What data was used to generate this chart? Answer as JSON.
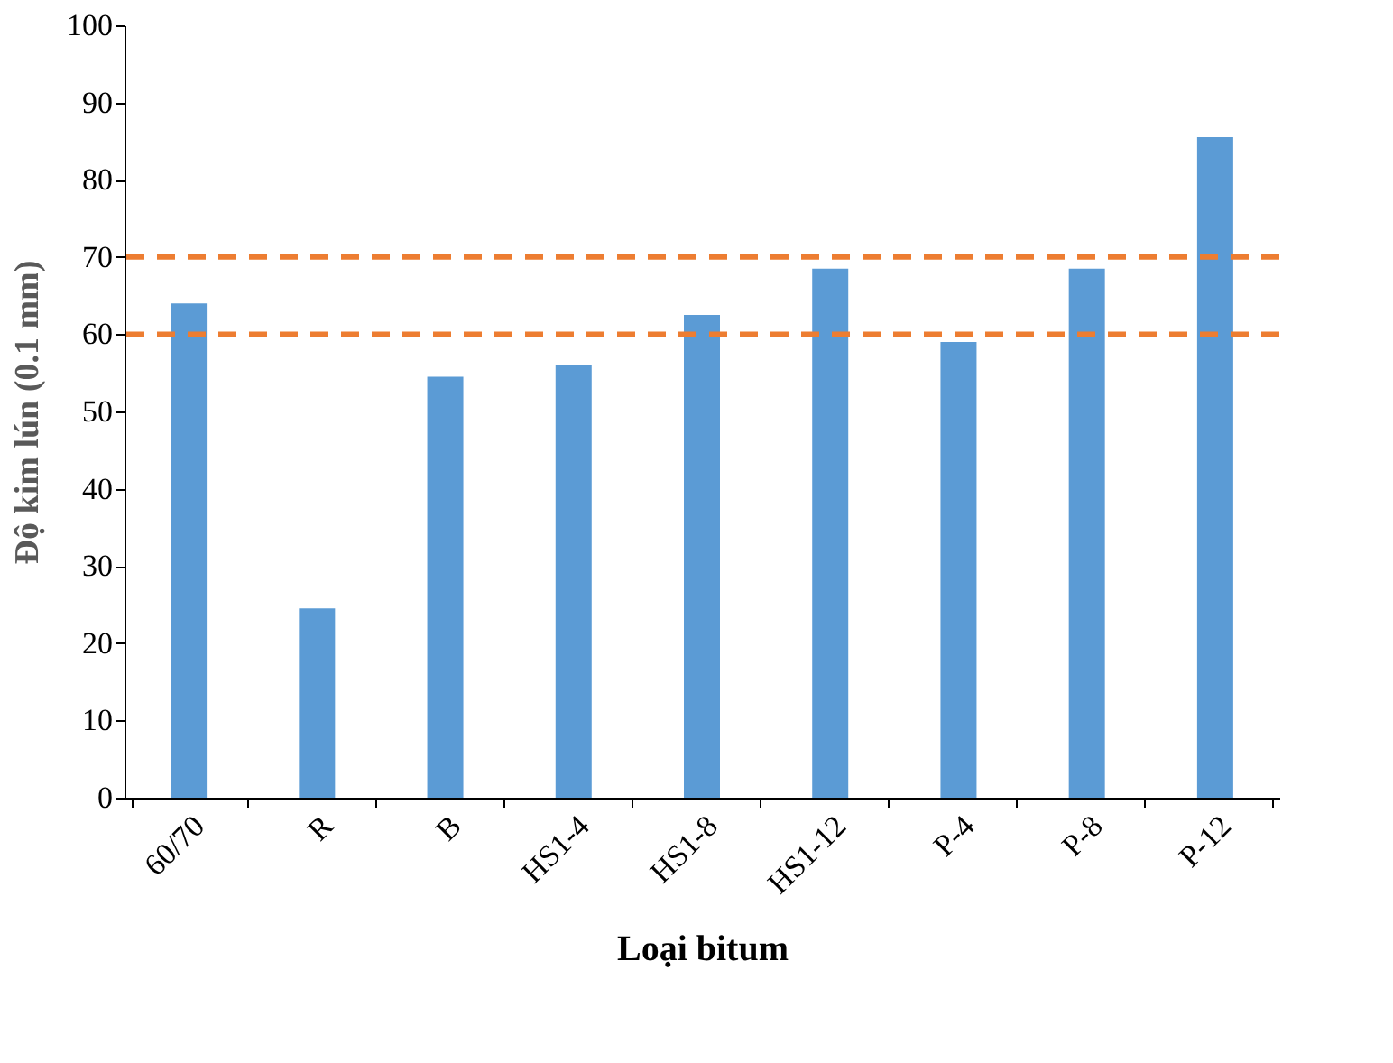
{
  "chart_data": {
    "type": "bar",
    "xlabel": "Loại bitum",
    "ylabel": "Độ kim lún (0.1 mm)",
    "categories": [
      "60/70",
      "R",
      "B",
      "HS1-4",
      "HS1-8",
      "HS1-12",
      "P-4",
      "P-8",
      "P-12"
    ],
    "series": [
      {
        "color": "#5b9bd5",
        "values": [
          64,
          24.5,
          54.5,
          56,
          62.5,
          68.5,
          59,
          68.5,
          85.5
        ]
      }
    ],
    "ylim": [
      0,
      100
    ],
    "yticks": [
      0,
      10,
      20,
      30,
      40,
      50,
      60,
      70,
      80,
      90,
      100
    ],
    "grid": false,
    "ref_lines": [
      {
        "axis": "y",
        "value": 70,
        "color": "#ed7d31",
        "line_style": "dashed"
      },
      {
        "axis": "y",
        "value": 60,
        "color": "#ed7d31",
        "line_style": "dashed"
      }
    ]
  }
}
